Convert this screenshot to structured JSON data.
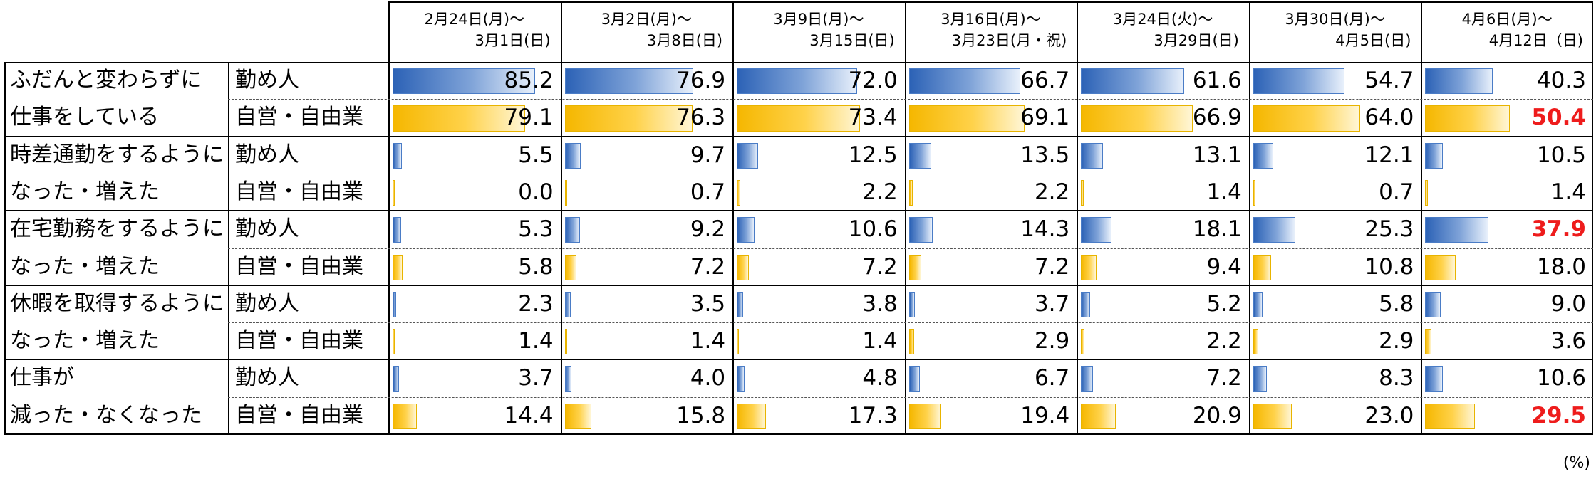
{
  "columns": [
    {
      "line1": "2月24日(月)～",
      "line2": "3月1日(日)"
    },
    {
      "line1": "3月2日(月)～",
      "line2": "3月8日(日)"
    },
    {
      "line1": "3月9日(月)～",
      "line2": "3月15日(日)"
    },
    {
      "line1": "3月16日(月)～",
      "line2": "3月23日(月・祝)"
    },
    {
      "line1": "3月24日(火)～",
      "line2": "3月29日(日)"
    },
    {
      "line1": "3月30日(月)～",
      "line2": "4月5日(日)"
    },
    {
      "line1": "4月6日(月)～",
      "line2": "4月12日（日)"
    }
  ],
  "unit": "(%)",
  "colors": {
    "employee_bar": "#4a7cc6",
    "self_employed_bar": "#f5b700",
    "highlight_text": "#ee1c1c"
  },
  "chart_data": {
    "type": "table",
    "bar_scale_max": 100,
    "categories": [
      "2月24日(月)～3月1日(日)",
      "3月2日(月)～3月8日(日)",
      "3月9日(月)～3月15日(日)",
      "3月16日(月)～3月23日(月・祝)",
      "3月24日(火)～3月29日(日)",
      "3月30日(月)～4月5日(日)",
      "4月6日(月)～4月12日（日)"
    ],
    "groups": [
      {
        "label_lines": [
          "ふだんと変わらずに",
          "仕事をしている"
        ],
        "rows": [
          {
            "sub": "勤め人",
            "type": "employee",
            "values": [
              "85.2",
              "76.9",
              "72.0",
              "66.7",
              "61.6",
              "54.7",
              "40.3"
            ],
            "highlight_last": false
          },
          {
            "sub": "自営・自由業",
            "type": "self",
            "values": [
              "79.1",
              "76.3",
              "73.4",
              "69.1",
              "66.9",
              "64.0",
              "50.4"
            ],
            "highlight_last": true
          }
        ]
      },
      {
        "label_lines": [
          "時差通勤をするように",
          "なった・増えた"
        ],
        "rows": [
          {
            "sub": "勤め人",
            "type": "employee",
            "values": [
              "5.5",
              "9.7",
              "12.5",
              "13.5",
              "13.1",
              "12.1",
              "10.5"
            ],
            "highlight_last": false
          },
          {
            "sub": "自営・自由業",
            "type": "self",
            "values": [
              "0.0",
              "0.7",
              "2.2",
              "2.2",
              "1.4",
              "0.7",
              "1.4"
            ],
            "highlight_last": false
          }
        ]
      },
      {
        "label_lines": [
          "在宅勤務をするように",
          "なった・増えた"
        ],
        "rows": [
          {
            "sub": "勤め人",
            "type": "employee",
            "values": [
              "5.3",
              "9.2",
              "10.6",
              "14.3",
              "18.1",
              "25.3",
              "37.9"
            ],
            "highlight_last": true
          },
          {
            "sub": "自営・自由業",
            "type": "self",
            "values": [
              "5.8",
              "7.2",
              "7.2",
              "7.2",
              "9.4",
              "10.8",
              "18.0"
            ],
            "highlight_last": false
          }
        ]
      },
      {
        "label_lines": [
          "休暇を取得するように",
          "なった・増えた"
        ],
        "rows": [
          {
            "sub": "勤め人",
            "type": "employee",
            "values": [
              "2.3",
              "3.5",
              "3.8",
              "3.7",
              "5.2",
              "5.8",
              "9.0"
            ],
            "highlight_last": false
          },
          {
            "sub": "自営・自由業",
            "type": "self",
            "values": [
              "1.4",
              "1.4",
              "1.4",
              "2.9",
              "2.2",
              "2.9",
              "3.6"
            ],
            "highlight_last": false
          }
        ]
      },
      {
        "label_lines": [
          "仕事が",
          "減った・なくなった"
        ],
        "rows": [
          {
            "sub": "勤め人",
            "type": "employee",
            "values": [
              "3.7",
              "4.0",
              "4.8",
              "6.7",
              "7.2",
              "8.3",
              "10.6"
            ],
            "highlight_last": false
          },
          {
            "sub": "自営・自由業",
            "type": "self",
            "values": [
              "14.4",
              "15.8",
              "17.3",
              "19.4",
              "20.9",
              "23.0",
              "29.5"
            ],
            "highlight_last": true
          }
        ]
      }
    ]
  }
}
